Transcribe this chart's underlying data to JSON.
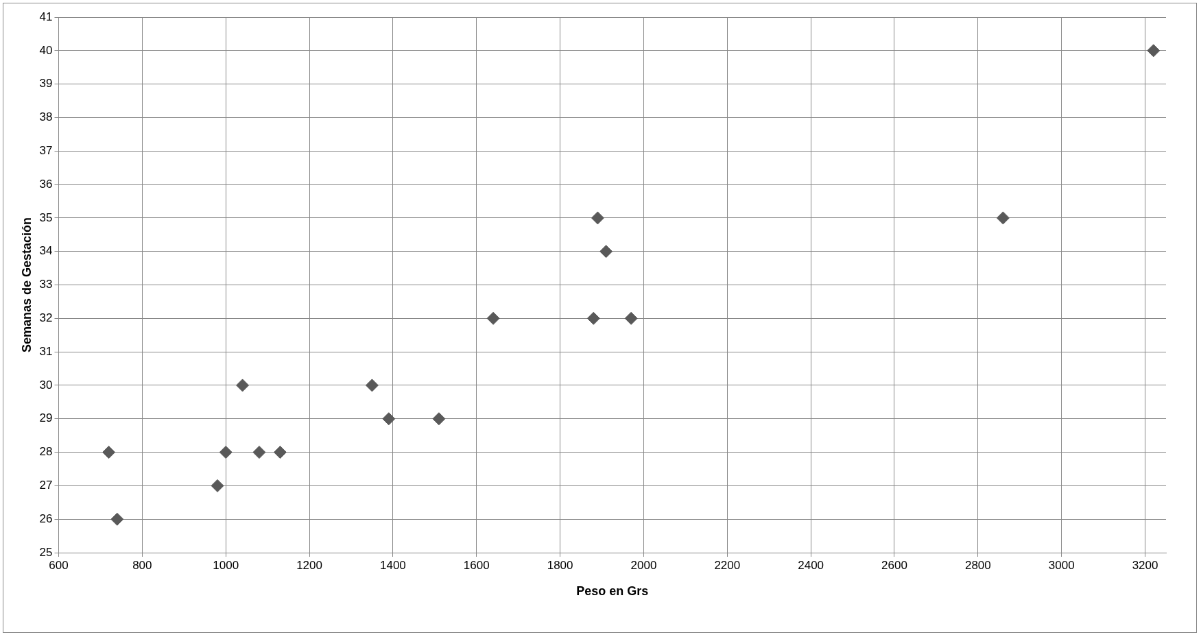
{
  "chart_data": {
    "type": "scatter",
    "xlabel": "Peso en Grs",
    "ylabel": "Semanas de Gestación",
    "x": [
      720,
      740,
      980,
      1000,
      1040,
      1080,
      1130,
      1350,
      1390,
      1510,
      1640,
      1880,
      1890,
      1910,
      1970,
      2860,
      3220
    ],
    "values": [
      28,
      26,
      27,
      28,
      30,
      28,
      28,
      30,
      29,
      29,
      32,
      32,
      35,
      34,
      32,
      35,
      40
    ],
    "color": "#595959",
    "marker": "diamond",
    "xlim": [
      600,
      3250
    ],
    "xticks": [
      600,
      800,
      1000,
      1200,
      1400,
      1600,
      1800,
      2000,
      2200,
      2400,
      2600,
      2800,
      3000,
      3200
    ],
    "ylim": [
      25,
      41
    ],
    "yticks": [
      25,
      26,
      27,
      28,
      29,
      30,
      31,
      32,
      33,
      34,
      35,
      36,
      37,
      38,
      39,
      40,
      41
    ],
    "grid": true,
    "legend": false
  }
}
